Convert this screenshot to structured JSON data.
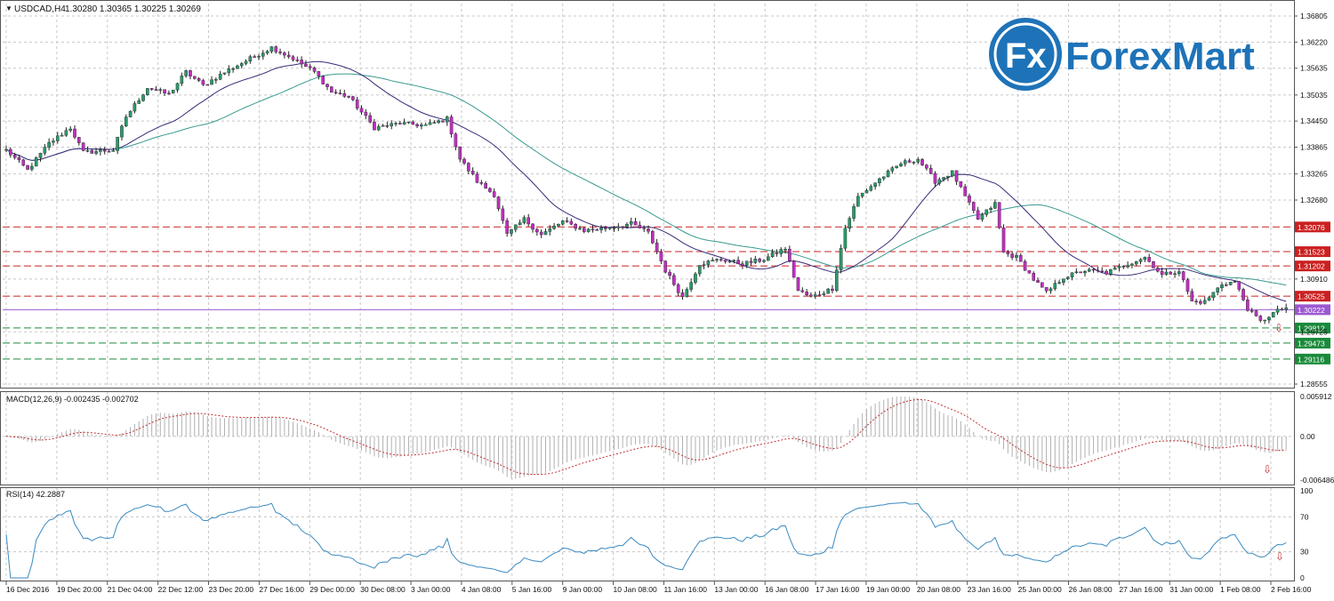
{
  "header": {
    "symbol": "USDCAD,H4",
    "ohlc": "1.30280 1.30365 1.30225 1.30269",
    "menu_glyph": "▼"
  },
  "logo": {
    "mark_text": "Fx",
    "brand_text": "ForexMart",
    "color": "#1e73b8"
  },
  "price_axis": {
    "labels": [
      "1.36805",
      "1.36220",
      "1.35635",
      "1.35035",
      "1.34450",
      "1.33865",
      "1.33265",
      "1.32680",
      "1.30910",
      "1.29725",
      "1.28555"
    ],
    "values": [
      1.36805,
      1.3622,
      1.35635,
      1.35035,
      1.3445,
      1.33865,
      1.33265,
      1.3268,
      1.3091,
      1.29725,
      1.28555
    ],
    "range": [
      1.28555,
      1.36805
    ]
  },
  "levels": [
    {
      "label": "1.32076",
      "value": 1.32076,
      "color": "#cc2020",
      "kind": "resistance"
    },
    {
      "label": "1.31523",
      "value": 1.31523,
      "color": "#cc2020",
      "kind": "resistance"
    },
    {
      "label": "1.31202",
      "value": 1.31202,
      "color": "#cc2020",
      "kind": "resistance"
    },
    {
      "label": "1.30525",
      "value": 1.30525,
      "color": "#cc2020",
      "kind": "resistance"
    },
    {
      "label": "1.30222",
      "value": 1.30222,
      "color": "#9b59d0",
      "kind": "current"
    },
    {
      "label": "1.29812",
      "value": 1.29812,
      "color": "#1a8a3a",
      "kind": "support"
    },
    {
      "label": "1.29473",
      "value": 1.29473,
      "color": "#1a8a3a",
      "kind": "support"
    },
    {
      "label": "1.29116",
      "value": 1.29116,
      "color": "#1a8a3a",
      "kind": "support"
    }
  ],
  "colors": {
    "bull": "#2a9a6a",
    "bear": "#c12fc1",
    "ma_fast": "#3a2a7a",
    "ma_slow": "#3a9a90",
    "macd_signal": "#c03030",
    "macd_hist": "#b0b0b0",
    "rsi_line": "#3a8ac0",
    "grid": "#c8c8c8"
  },
  "macd": {
    "label": "MACD(12,26,9) -0.002435 -0.002702",
    "axis_labels": [
      "0.005912",
      "0.00",
      "-0.006486"
    ],
    "range": [
      -0.006486,
      0.005912
    ],
    "arrow": "⇩"
  },
  "rsi": {
    "label": "RSI(14) 42.2887",
    "axis_labels": [
      "100",
      "70",
      "30",
      "0"
    ],
    "axis_values": [
      100,
      70,
      30,
      0
    ],
    "arrow": "⇩"
  },
  "time_axis": [
    "16 Dec 2016",
    "19 Dec 20:00",
    "21 Dec 04:00",
    "22 Dec 12:00",
    "23 Dec 20:00",
    "27 Dec 16:00",
    "29 Dec 00:00",
    "30 Dec 08:00",
    "3 Jan 00:00",
    "4 Jan 08:00",
    "5 Jan 16:00",
    "9 Jan 00:00",
    "10 Jan 08:00",
    "11 Jan 16:00",
    "13 Jan 00:00",
    "16 Jan 08:00",
    "17 Jan 16:00",
    "19 Jan 00:00",
    "20 Jan 08:00",
    "23 Jan 16:00",
    "25 Jan 00:00",
    "26 Jan 08:00",
    "27 Jan 16:00",
    "31 Jan 00:00",
    "1 Feb 08:00",
    "2 Feb 16:00"
  ],
  "chart_data": {
    "type": "candlestick",
    "title": "USDCAD,H4",
    "ylim": [
      1.28555,
      1.36805
    ],
    "price_path": [
      {
        "i": 0,
        "p": 1.338
      },
      {
        "i": 5,
        "p": 1.3335
      },
      {
        "i": 10,
        "p": 1.3395
      },
      {
        "i": 15,
        "p": 1.343
      },
      {
        "i": 18,
        "p": 1.3375
      },
      {
        "i": 25,
        "p": 1.338
      },
      {
        "i": 28,
        "p": 1.3455
      },
      {
        "i": 33,
        "p": 1.352
      },
      {
        "i": 38,
        "p": 1.3505
      },
      {
        "i": 42,
        "p": 1.3555
      },
      {
        "i": 46,
        "p": 1.3525
      },
      {
        "i": 52,
        "p": 1.356
      },
      {
        "i": 57,
        "p": 1.3585
      },
      {
        "i": 62,
        "p": 1.361
      },
      {
        "i": 67,
        "p": 1.3585
      },
      {
        "i": 72,
        "p": 1.3555
      },
      {
        "i": 76,
        "p": 1.351
      },
      {
        "i": 80,
        "p": 1.35
      },
      {
        "i": 86,
        "p": 1.343
      },
      {
        "i": 92,
        "p": 1.344
      },
      {
        "i": 98,
        "p": 1.3435
      },
      {
        "i": 103,
        "p": 1.345
      },
      {
        "i": 106,
        "p": 1.336
      },
      {
        "i": 110,
        "p": 1.331
      },
      {
        "i": 114,
        "p": 1.328
      },
      {
        "i": 117,
        "p": 1.319
      },
      {
        "i": 121,
        "p": 1.3225
      },
      {
        "i": 125,
        "p": 1.319
      },
      {
        "i": 130,
        "p": 1.322
      },
      {
        "i": 135,
        "p": 1.32
      },
      {
        "i": 140,
        "p": 1.3205
      },
      {
        "i": 146,
        "p": 1.3215
      },
      {
        "i": 150,
        "p": 1.3195
      },
      {
        "i": 154,
        "p": 1.311
      },
      {
        "i": 158,
        "p": 1.305
      },
      {
        "i": 162,
        "p": 1.3125
      },
      {
        "i": 167,
        "p": 1.3135
      },
      {
        "i": 172,
        "p": 1.3125
      },
      {
        "i": 177,
        "p": 1.3135
      },
      {
        "i": 182,
        "p": 1.316
      },
      {
        "i": 185,
        "p": 1.3065
      },
      {
        "i": 188,
        "p": 1.305
      },
      {
        "i": 193,
        "p": 1.307
      },
      {
        "i": 196,
        "p": 1.3205
      },
      {
        "i": 199,
        "p": 1.3275
      },
      {
        "i": 204,
        "p": 1.3315
      },
      {
        "i": 209,
        "p": 1.335
      },
      {
        "i": 213,
        "p": 1.336
      },
      {
        "i": 217,
        "p": 1.331
      },
      {
        "i": 221,
        "p": 1.333
      },
      {
        "i": 224,
        "p": 1.3275
      },
      {
        "i": 227,
        "p": 1.3225
      },
      {
        "i": 231,
        "p": 1.326
      },
      {
        "i": 233,
        "p": 1.315
      },
      {
        "i": 236,
        "p": 1.314
      },
      {
        "i": 240,
        "p": 1.309
      },
      {
        "i": 243,
        "p": 1.306
      },
      {
        "i": 247,
        "p": 1.3095
      },
      {
        "i": 252,
        "p": 1.311
      },
      {
        "i": 257,
        "p": 1.3105
      },
      {
        "i": 262,
        "p": 1.3125
      },
      {
        "i": 266,
        "p": 1.314
      },
      {
        "i": 270,
        "p": 1.31
      },
      {
        "i": 274,
        "p": 1.311
      },
      {
        "i": 277,
        "p": 1.304
      },
      {
        "i": 280,
        "p": 1.304
      },
      {
        "i": 284,
        "p": 1.308
      },
      {
        "i": 287,
        "p": 1.3085
      },
      {
        "i": 290,
        "p": 1.3025
      },
      {
        "i": 293,
        "p": 1.2995
      },
      {
        "i": 296,
        "p": 1.3015
      },
      {
        "i": 299,
        "p": 1.3027
      }
    ],
    "series": [
      {
        "name": "",
        "type": "line"
      },
      {
        "name": "",
        "type": "line"
      }
    ]
  }
}
